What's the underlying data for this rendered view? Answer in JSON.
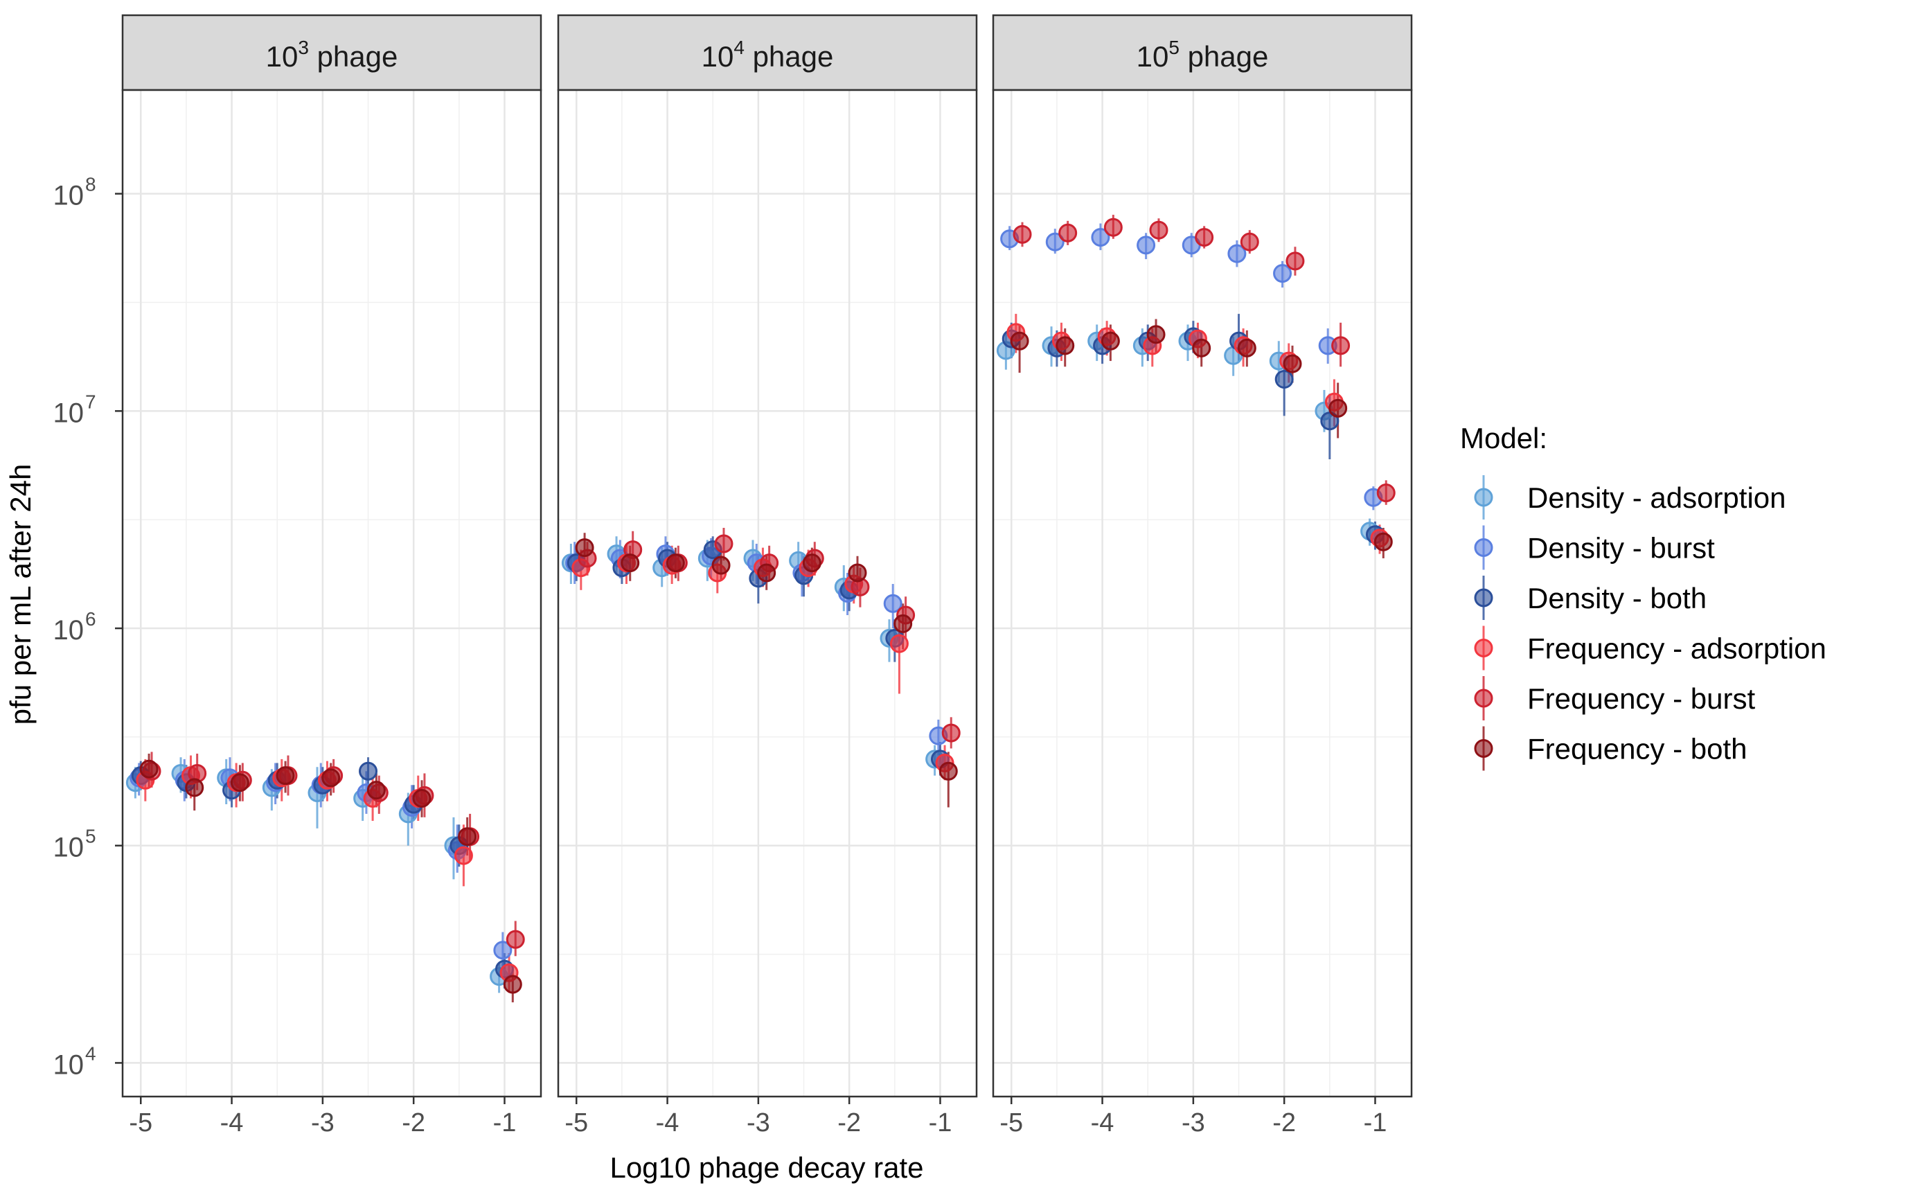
{
  "chart_data": {
    "type": "scatter",
    "title": "",
    "xlabel": "Log10 phage decay rate",
    "ylabel": "pfu per mL after 24h",
    "y_scale": "log10",
    "ylim": [
      7000,
      300000000
    ],
    "xlim": [
      -5.2,
      -0.6
    ],
    "x_ticks": [
      -5,
      -4,
      -3,
      -2,
      -1
    ],
    "x_tick_labels": [
      "-5",
      "-4",
      "-3",
      "-2",
      "-1"
    ],
    "y_ticks": [
      10000,
      100000,
      1000000,
      10000000,
      100000000
    ],
    "y_tick_labels": [
      {
        "base": "10",
        "exp": "4"
      },
      {
        "base": "10",
        "exp": "5"
      },
      {
        "base": "10",
        "exp": "6"
      },
      {
        "base": "10",
        "exp": "7"
      },
      {
        "base": "10",
        "exp": "8"
      }
    ],
    "grid": true,
    "legend_placement": "right",
    "legend_title": "Model:",
    "x": [
      -5,
      -4.5,
      -4,
      -3.5,
      -3,
      -2.5,
      -2,
      -1.5,
      -1
    ],
    "series": [
      {
        "name": "Density - adsorption",
        "color": "#5fa2d8",
        "offset": -0.06
      },
      {
        "name": "Density - burst",
        "color": "#5a7fe0",
        "offset": -0.02
      },
      {
        "name": "Density - both",
        "color": "#2b4f9a",
        "offset": 0.0
      },
      {
        "name": "Frequency - adsorption",
        "color": "#f2363f",
        "offset": 0.05
      },
      {
        "name": "Frequency - burst",
        "color": "#cc2230",
        "offset": 0.12
      },
      {
        "name": "Frequency - both",
        "color": "#8e1015",
        "offset": 0.09
      }
    ],
    "panels": [
      {
        "strip": {
          "base": "10",
          "exp": "3",
          "text": "phage"
        },
        "series_values": [
          {
            "y": [
              195000,
              215000,
              205000,
              185000,
              175000,
              165000,
              140000,
              100000,
              25000
            ],
            "lo": [
              165000,
              175000,
              155000,
              145000,
              120000,
              130000,
              100000,
              70000,
              21000
            ],
            "hi": [
              230000,
              255000,
              250000,
              225000,
              230000,
              205000,
              175000,
              135000,
              29000
            ]
          },
          {
            "y": [
              205000,
              200000,
              205000,
              195000,
              190000,
              175000,
              150000,
              95000,
              33000
            ],
            "lo": [
              170000,
              160000,
              160000,
              155000,
              150000,
              140000,
              120000,
              75000,
              27000
            ],
            "hi": [
              240000,
              250000,
              255000,
              240000,
              240000,
              220000,
              190000,
              125000,
              40000
            ]
          },
          {
            "y": [
              210000,
              195000,
              180000,
              200000,
              190000,
              220000,
              155000,
              100000,
              27000
            ],
            "lo": [
              180000,
              165000,
              150000,
              165000,
              160000,
              185000,
              130000,
              80000,
              22000
            ],
            "hi": [
              245000,
              235000,
              220000,
              240000,
              230000,
              255000,
              190000,
              125000,
              32000
            ]
          },
          {
            "y": [
              200000,
              210000,
              195000,
              205000,
              200000,
              165000,
              165000,
              90000,
              26000
            ],
            "lo": [
              160000,
              165000,
              150000,
              160000,
              160000,
              130000,
              130000,
              65000,
              21000
            ],
            "hi": [
              250000,
              260000,
              240000,
              250000,
              245000,
              205000,
              210000,
              125000,
              32000
            ]
          },
          {
            "y": [
              220000,
              215000,
              200000,
              210000,
              210000,
              175000,
              170000,
              110000,
              37000
            ],
            "lo": [
              185000,
              180000,
              160000,
              170000,
              175000,
              140000,
              135000,
              85000,
              31000
            ],
            "hi": [
              270000,
              265000,
              240000,
              260000,
              250000,
              210000,
              215000,
              140000,
              45000
            ]
          },
          {
            "y": [
              225000,
              185000,
              195000,
              210000,
              205000,
              180000,
              165000,
              110000,
              23000
            ],
            "lo": [
              185000,
              145000,
              160000,
              175000,
              170000,
              150000,
              135000,
              90000,
              19000
            ],
            "hi": [
              265000,
              225000,
              235000,
              245000,
              240000,
              215000,
              200000,
              135000,
              27000
            ]
          }
        ]
      },
      {
        "strip": {
          "base": "10",
          "exp": "4",
          "text": "phage"
        },
        "series_values": [
          {
            "y": [
              2000000,
              2200000,
              1900000,
              2100000,
              2100000,
              2050000,
              1550000,
              900000,
              250000
            ],
            "lo": [
              1600000,
              1800000,
              1550000,
              1650000,
              1650000,
              1650000,
              1200000,
              700000,
              210000
            ],
            "hi": [
              2450000,
              2650000,
              2350000,
              2550000,
              2550000,
              2500000,
              1950000,
              1100000,
              290000
            ]
          },
          {
            "y": [
              2000000,
              2100000,
              2200000,
              2150000,
              2000000,
              1800000,
              1450000,
              1300000,
              320000
            ],
            "lo": [
              1600000,
              1700000,
              1750000,
              1700000,
              1600000,
              1400000,
              1150000,
              1000000,
              260000
            ],
            "hi": [
              2500000,
              2550000,
              2650000,
              2600000,
              2450000,
              2200000,
              1800000,
              1600000,
              380000
            ]
          },
          {
            "y": [
              2000000,
              1900000,
              2100000,
              2300000,
              1700000,
              1750000,
              1500000,
              900000,
              250000
            ],
            "lo": [
              1650000,
              1600000,
              1750000,
              1950000,
              1300000,
              1400000,
              1200000,
              700000,
              210000
            ],
            "hi": [
              2400000,
              2250000,
              2500000,
              2650000,
              2150000,
              2150000,
              1850000,
              1100000,
              300000
            ]
          },
          {
            "y": [
              1900000,
              2000000,
              1950000,
              1800000,
              1900000,
              1900000,
              1600000,
              850000,
              240000
            ],
            "lo": [
              1500000,
              1600000,
              1600000,
              1450000,
              1550000,
              1550000,
              1300000,
              500000,
              200000
            ],
            "hi": [
              2300000,
              2450000,
              2400000,
              2200000,
              2350000,
              2300000,
              1950000,
              1150000,
              290000
            ]
          },
          {
            "y": [
              2100000,
              2300000,
              2000000,
              2450000,
              2000000,
              2100000,
              1550000,
              1150000,
              330000
            ],
            "lo": [
              1750000,
              1900000,
              1650000,
              2050000,
              1650000,
              1750000,
              1250000,
              900000,
              280000
            ],
            "hi": [
              2500000,
              2800000,
              2400000,
              2900000,
              2400000,
              2500000,
              1900000,
              1400000,
              390000
            ]
          },
          {
            "y": [
              2350000,
              2000000,
              2000000,
              1950000,
              1800000,
              2000000,
              1800000,
              1050000,
              220000
            ],
            "lo": [
              1950000,
              1650000,
              1700000,
              1650000,
              1500000,
              1700000,
              1450000,
              800000,
              150000
            ],
            "hi": [
              2750000,
              2400000,
              2350000,
              2300000,
              2150000,
              2350000,
              2150000,
              1300000,
              270000
            ]
          }
        ]
      },
      {
        "strip": {
          "base": "10",
          "exp": "5",
          "text": "phage"
        },
        "series_values": [
          {
            "y": [
              19000000,
              20000000,
              21000000,
              20000000,
              21000000,
              18000000,
              17000000,
              10000000,
              2800000
            ],
            "lo": [
              15500000,
              16000000,
              17000000,
              16000000,
              17000000,
              14500000,
              13500000,
              8000000,
              2400000
            ],
            "hi": [
              23000000,
              24500000,
              25000000,
              24000000,
              25000000,
              22000000,
              21000000,
              12500000,
              3200000
            ]
          },
          {
            "y": [
              62000000,
              60000000,
              63000000,
              58000000,
              58000000,
              53000000,
              43000000,
              20000000,
              4000000
            ],
            "lo": [
              55000000,
              53000000,
              55000000,
              50000000,
              51000000,
              46000000,
              37000000,
              16500000,
              3500000
            ],
            "hi": [
              71000000,
              69000000,
              73000000,
              66000000,
              66000000,
              61000000,
              49000000,
              24000000,
              4500000
            ]
          },
          {
            "y": [
              21500000,
              19500000,
              20000000,
              21000000,
              22000000,
              21000000,
              14000000,
              9000000,
              2700000
            ],
            "lo": [
              17500000,
              16000000,
              16500000,
              17000000,
              18500000,
              17000000,
              9500000,
              6000000,
              2300000
            ],
            "hi": [
              25500000,
              23500000,
              24000000,
              25000000,
              26000000,
              28000000,
              18000000,
              12000000,
              3100000
            ]
          },
          {
            "y": [
              23000000,
              21000000,
              22000000,
              20000000,
              21500000,
              20000000,
              17000000,
              11000000,
              2600000
            ],
            "lo": [
              18500000,
              17000000,
              18000000,
              16000000,
              17500000,
              16000000,
              13500000,
              8500000,
              2200000
            ],
            "hi": [
              28000000,
              25500000,
              26000000,
              24000000,
              25500000,
              24000000,
              20500000,
              14000000,
              3000000
            ]
          },
          {
            "y": [
              65000000,
              66000000,
              70000000,
              68000000,
              63000000,
              60000000,
              49000000,
              20000000,
              4200000
            ],
            "lo": [
              57000000,
              58000000,
              62000000,
              60000000,
              56000000,
              53000000,
              42000000,
              16000000,
              3700000
            ],
            "hi": [
              74000000,
              75000000,
              80000000,
              77000000,
              71000000,
              68000000,
              57000000,
              25500000,
              4800000
            ]
          },
          {
            "y": [
              21000000,
              20000000,
              21000000,
              22500000,
              19500000,
              19500000,
              16500000,
              10300000,
              2500000
            ],
            "lo": [
              15000000,
              16000000,
              17000000,
              18500000,
              16000000,
              16000000,
              13500000,
              7500000,
              2100000
            ],
            "hi": [
              25000000,
              24000000,
              25000000,
              26500000,
              23500000,
              23500000,
              20000000,
              13500000,
              2900000
            ]
          }
        ]
      }
    ]
  }
}
